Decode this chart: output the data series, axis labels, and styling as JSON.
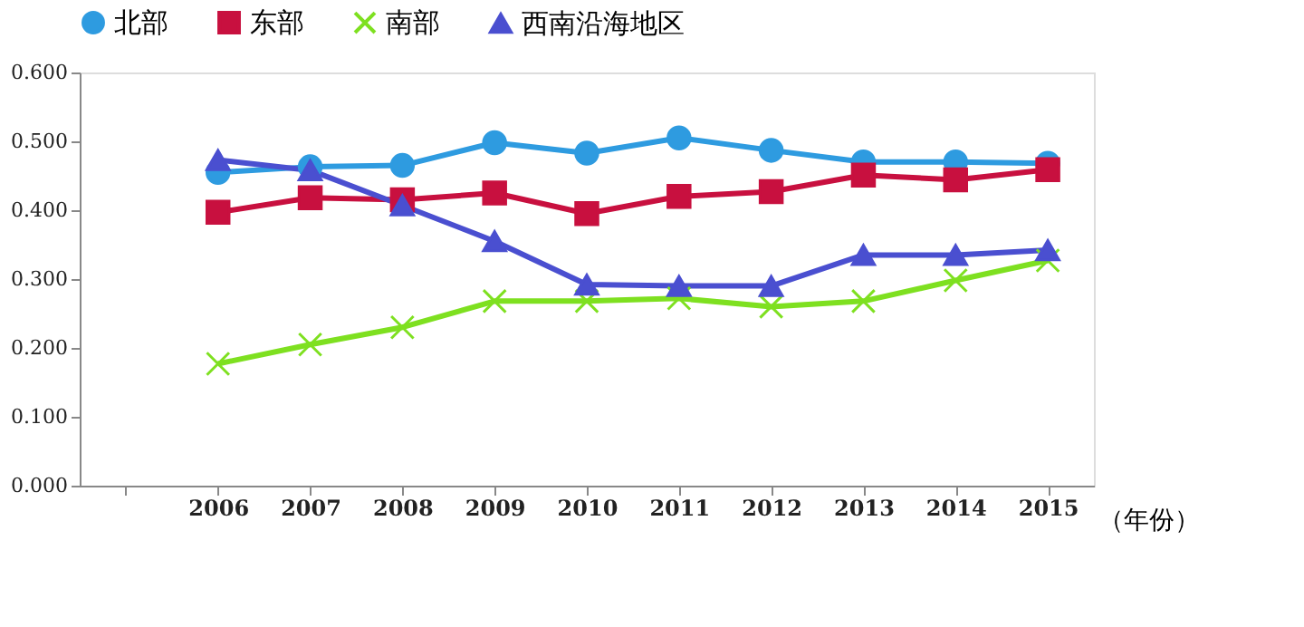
{
  "chart_data": {
    "type": "line",
    "xlabel": "（年份）",
    "categories": [
      null,
      "2006",
      "2007",
      "2008",
      "2009",
      "2010",
      "2011",
      "2012",
      "2013",
      "2014",
      "2015"
    ],
    "ylim": [
      0,
      0.6
    ],
    "yticks": [
      {
        "value": 0,
        "label": "0.000"
      },
      {
        "value": 0.1,
        "label": "0.100"
      },
      {
        "value": 0.2,
        "label": "0.200"
      },
      {
        "value": 0.3,
        "label": "0.300"
      },
      {
        "value": 0.4,
        "label": "0.400"
      },
      {
        "value": 0.5,
        "label": "0.500"
      },
      {
        "value": 0.6,
        "label": "0.600"
      }
    ],
    "grid": false,
    "legend": "top",
    "line_style": "solid",
    "series": [
      {
        "name": "北部",
        "color": "#2e9be0",
        "marker": "circle",
        "values": [
          null,
          0.455,
          0.463,
          0.465,
          0.498,
          0.483,
          0.505,
          0.487,
          0.47,
          0.47,
          0.468
        ]
      },
      {
        "name": "东部",
        "color": "#c8103f",
        "marker": "square",
        "values": [
          null,
          0.397,
          0.418,
          0.415,
          0.425,
          0.395,
          0.42,
          0.427,
          0.451,
          0.444,
          0.459
        ]
      },
      {
        "name": "南部",
        "color": "#7ee020",
        "marker": "cross",
        "values": [
          null,
          0.177,
          0.205,
          0.23,
          0.268,
          0.268,
          0.272,
          0.26,
          0.268,
          0.298,
          0.327
        ]
      },
      {
        "name": "西南沿海地区",
        "color": "#4a4fd0",
        "marker": "triangle",
        "values": [
          null,
          0.473,
          0.458,
          0.407,
          0.355,
          0.292,
          0.29,
          0.29,
          0.335,
          0.335,
          0.342
        ]
      }
    ]
  }
}
